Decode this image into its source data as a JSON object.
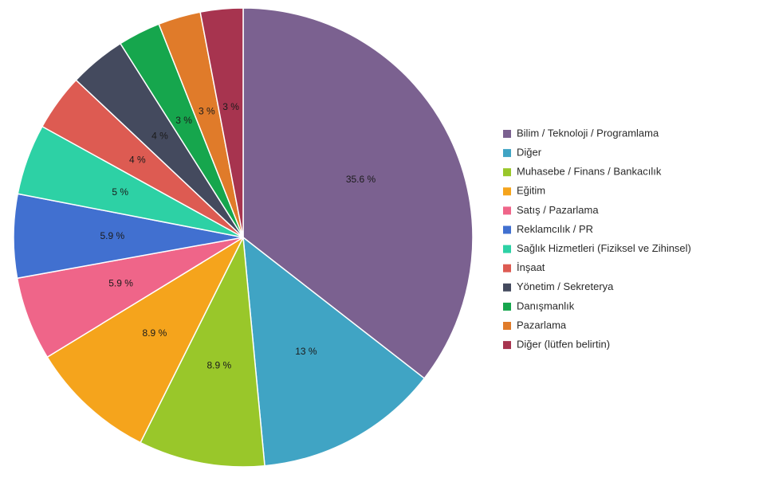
{
  "chart_data": {
    "type": "pie",
    "legend_position": "right",
    "start_angle_deg": 0,
    "direction": "clockwise",
    "categories": [
      "Bilim / Teknoloji / Programlama",
      "Diğer",
      "Muhasebe / Finans / Bankacılık",
      "Eğitim",
      "Satış / Pazarlama",
      "Reklamcılık / PR",
      "Sağlık Hizmetleri (Fiziksel ve Zihinsel)",
      "İnşaat",
      "Yönetim / Sekreterya",
      "Danışmanlık",
      "Pazarlama",
      "Diğer (lütfen belirtin)"
    ],
    "values": [
      35.6,
      13,
      8.9,
      8.9,
      5.9,
      5.9,
      5,
      4,
      4,
      3,
      3,
      3
    ],
    "data_labels": [
      "35.6 %",
      "13 %",
      "8.9 %",
      "8.9 %",
      "5.9 %",
      "5.9 %",
      "5 %",
      "4 %",
      "4 %",
      "3 %",
      "3 %",
      "3 %"
    ],
    "colors": [
      "#7b6190",
      "#40a4c4",
      "#99c72a",
      "#f5a41c",
      "#ef6589",
      "#4170d0",
      "#2dd1a5",
      "#dd5b52",
      "#444a5e",
      "#16a64d",
      "#e07b2a",
      "#a7344f"
    ],
    "title": "",
    "xlabel": "",
    "ylabel": ""
  }
}
